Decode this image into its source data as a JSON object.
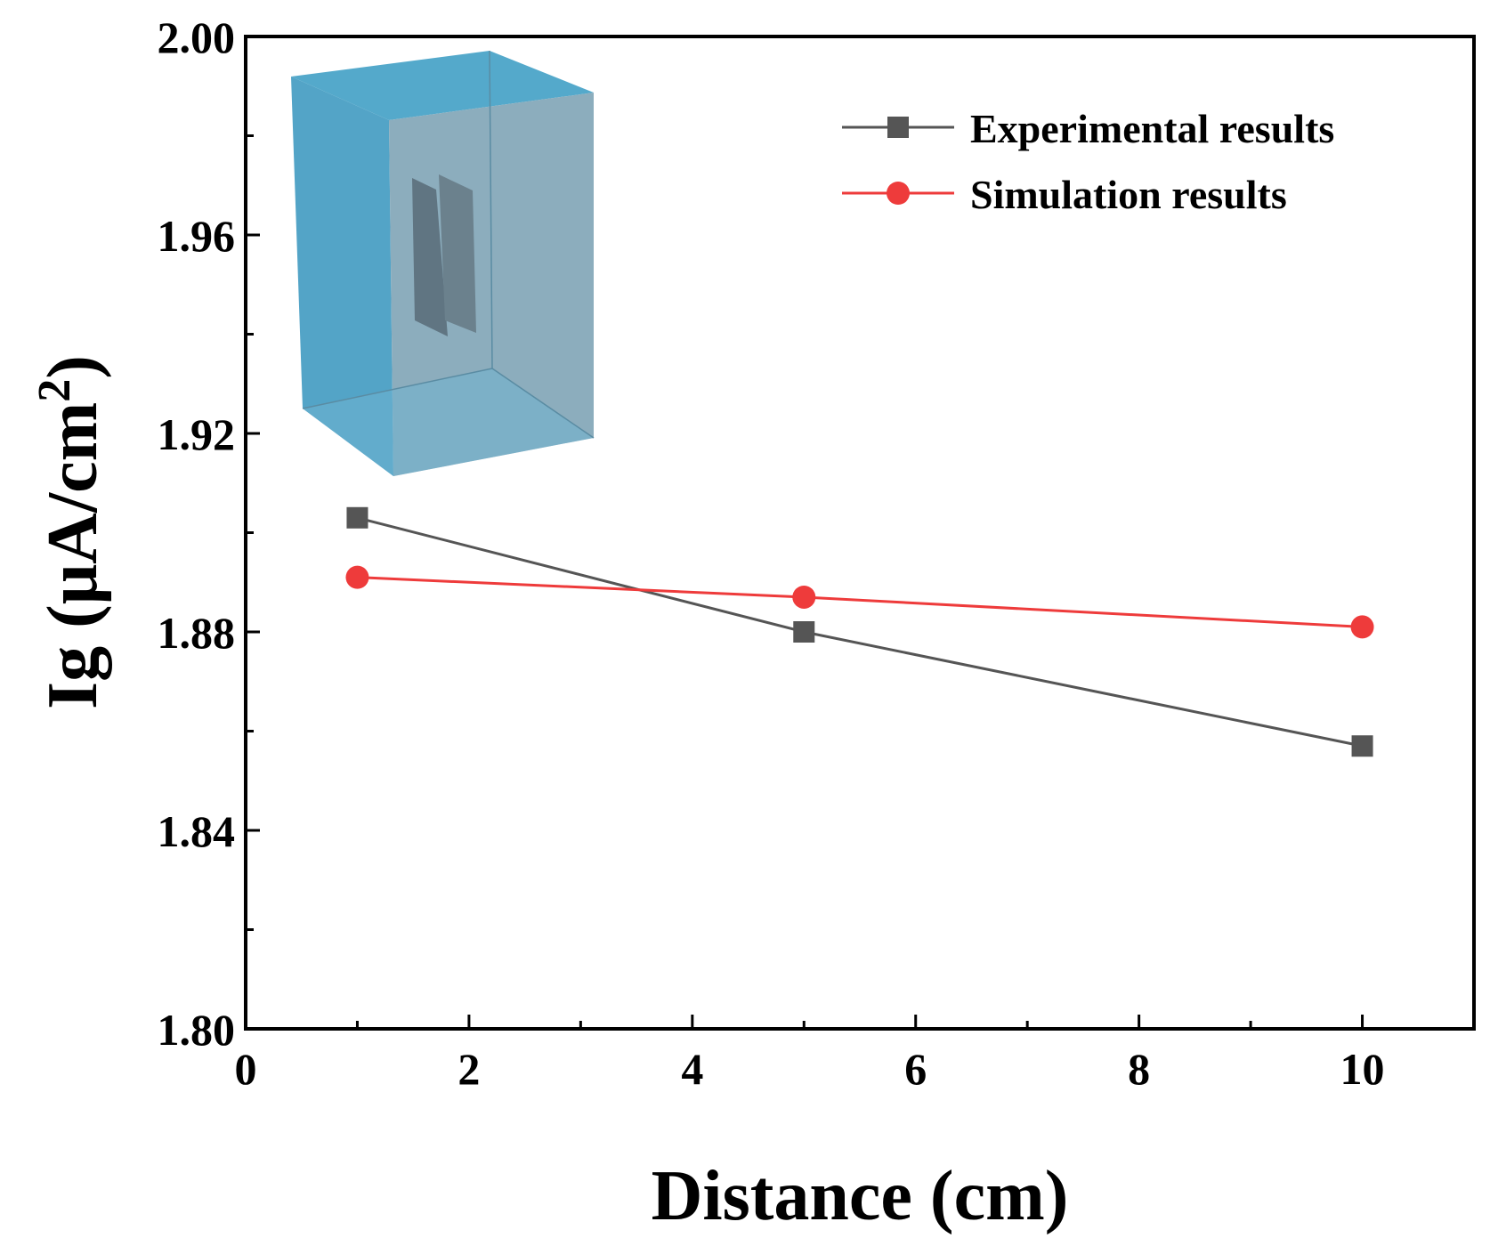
{
  "chart_data": {
    "type": "line",
    "xlabel": "Distance (cm)",
    "ylabel": {
      "base": "Ig (μA/cm",
      "superscript": "2",
      "close": ")"
    },
    "xlim": [
      0,
      11
    ],
    "ylim": [
      1.8,
      2.0
    ],
    "x_ticks": [
      0,
      2,
      4,
      6,
      8,
      10
    ],
    "x_tick_labels": [
      "0",
      "2",
      "4",
      "6",
      "8",
      "10"
    ],
    "x_minor_ticks": [
      1,
      3,
      5,
      7,
      9,
      11
    ],
    "y_ticks": [
      1.8,
      1.84,
      1.88,
      1.92,
      1.96,
      2.0
    ],
    "y_tick_labels": [
      "1.80",
      "1.84",
      "1.88",
      "1.92",
      "1.96",
      "2.00"
    ],
    "y_minor_ticks": [
      1.82,
      1.86,
      1.9,
      1.94,
      1.98
    ],
    "grid": false,
    "legend_position": "top-right",
    "series": [
      {
        "name": "Experimental results",
        "marker": "square",
        "color": "#555555",
        "x": [
          1,
          5,
          10
        ],
        "y": [
          1.903,
          1.88,
          1.857
        ]
      },
      {
        "name": "Simulation results",
        "marker": "circle",
        "color": "#ee3b3b",
        "x": [
          1,
          5,
          10
        ],
        "y": [
          1.891,
          1.887,
          1.881
        ]
      }
    ],
    "inset": "3d-box-with-electrode-plates"
  }
}
